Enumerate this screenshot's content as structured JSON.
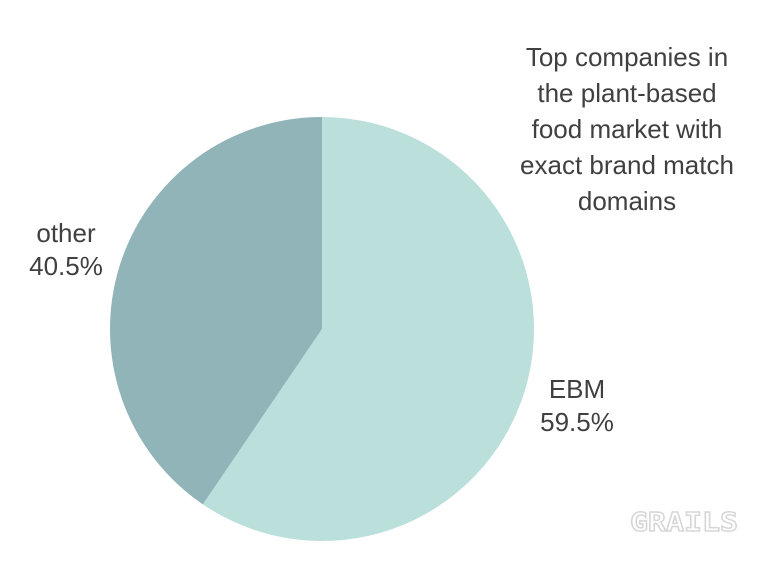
{
  "chart_data": {
    "type": "pie",
    "title": "Top companies in the plant-based food market with exact brand match domains",
    "title_lines": [
      "Top companies in",
      "the plant-based",
      "food market with",
      "exact brand match",
      "domains"
    ],
    "slices": [
      {
        "label": "EBM",
        "value": 59.5,
        "display": "59.5%",
        "color": "#bbdfda"
      },
      {
        "label": "other",
        "value": 40.5,
        "display": "40.5%",
        "color": "#90b4b8"
      }
    ],
    "start_angle_deg": 0,
    "direction": "clockwise",
    "legend_position": "none",
    "labels_position": "outside",
    "background": "#ffffff",
    "text_color": "#404040"
  },
  "watermark": {
    "text": "GRAILS",
    "color": "#d6d6d6"
  }
}
